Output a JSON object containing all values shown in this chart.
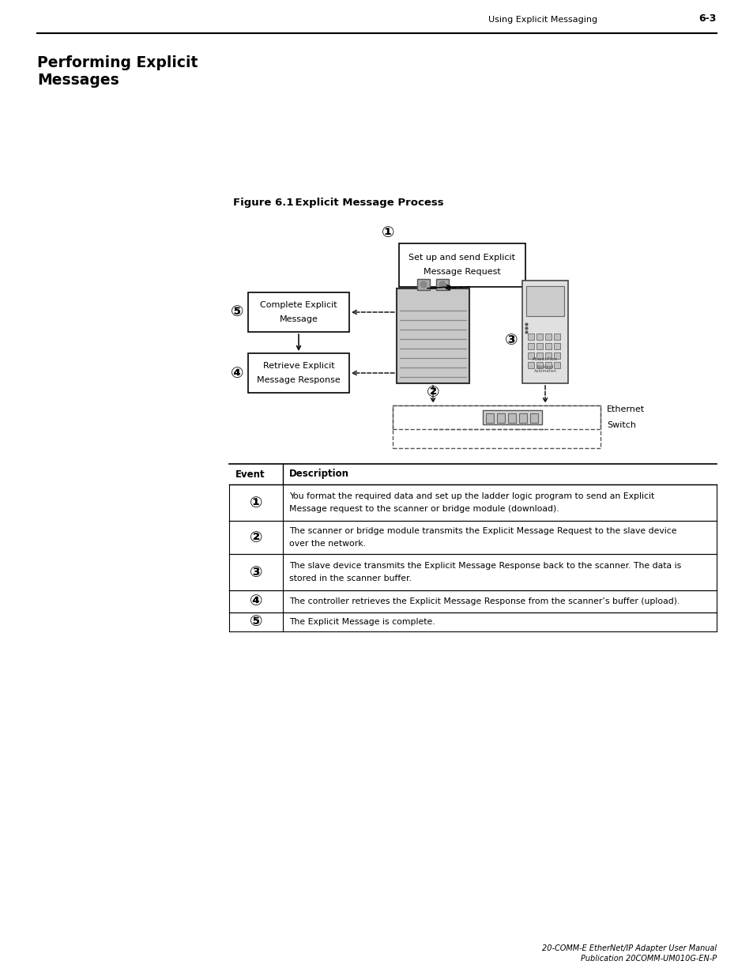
{
  "page_header_left": "Using Explicit Messaging",
  "page_header_right": "6-3",
  "title_line1": "Performing Explicit",
  "title_line2": "Messages",
  "figure_label": "Figure 6.1",
  "figure_title": "    Explicit Message Process",
  "box1_text": [
    "Set up and send Explicit",
    "Message Request"
  ],
  "box2_text": [
    "Complete Explicit",
    "Message"
  ],
  "box3_text": [
    "Retrieve Explicit",
    "Message Response"
  ],
  "label_ethernet": [
    "Ethernet",
    "Switch"
  ],
  "num1": "①",
  "num2": "②",
  "num3": "③",
  "num4": "④",
  "num5": "⑤",
  "table_header": [
    "Event",
    "Description"
  ],
  "table_rows": [
    [
      "①",
      "You format the required data and set up the ladder logic program to send an Explicit\nMessage request to the scanner or bridge module (download)."
    ],
    [
      "②",
      "The scanner or bridge module transmits the Explicit Message Request to the slave device\nover the network."
    ],
    [
      "③",
      "The slave device transmits the Explicit Message Response back to the scanner. The data is\nstored in the scanner buffer."
    ],
    [
      "④",
      "The controller retrieves the Explicit Message Response from the scanner’s buffer (upload)."
    ],
    [
      "⑤",
      "The Explicit Message is complete."
    ]
  ],
  "footer_line1": "20-COMM-E EtherNet/IP Adapter User Manual",
  "footer_line2": "Publication 20COMM-UM010G-EN-P",
  "bg_color": "#ffffff",
  "text_color": "#000000"
}
